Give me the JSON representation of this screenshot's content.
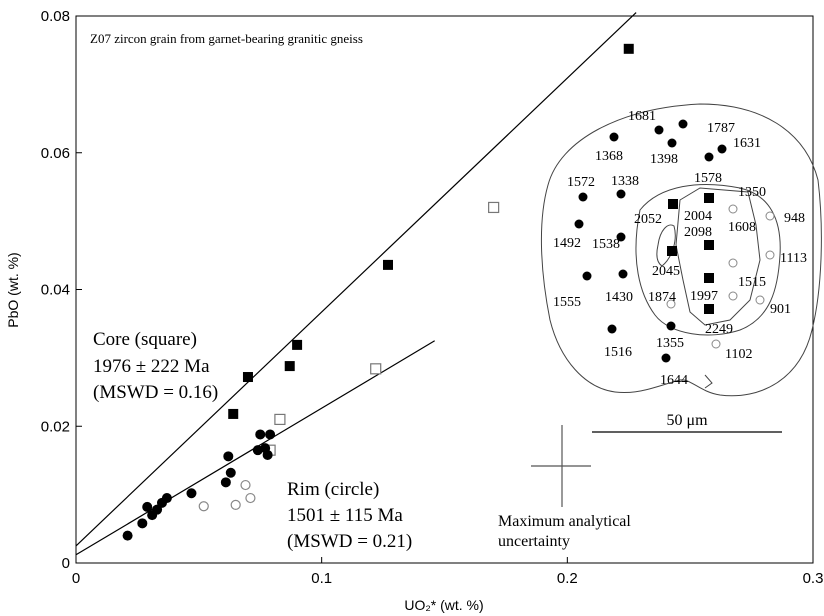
{
  "chart_data": {
    "type": "scatter",
    "title": "Z07 zircon grain from garnet-bearing granitic gneiss",
    "xlabel": "UO₂* (wt. %)",
    "ylabel": "PbO (wt. %)",
    "xlim": [
      0,
      0.3
    ],
    "ylim": [
      0,
      0.08
    ],
    "x_ticks": [
      "0",
      "0.1",
      "0.2",
      "0.3"
    ],
    "y_ticks": [
      "0",
      "0.02",
      "0.04",
      "0.06",
      "0.08"
    ],
    "series": [
      {
        "marker": "filled-square",
        "points": [
          [
            0.064,
            0.0218
          ],
          [
            0.07,
            0.0272
          ],
          [
            0.087,
            0.0288
          ],
          [
            0.09,
            0.0319
          ],
          [
            0.127,
            0.0436
          ],
          [
            0.225,
            0.0752
          ]
        ]
      },
      {
        "marker": "open-square",
        "points": [
          [
            0.079,
            0.0165
          ],
          [
            0.083,
            0.021
          ],
          [
            0.122,
            0.0284
          ],
          [
            0.17,
            0.052
          ]
        ]
      },
      {
        "marker": "filled-circle",
        "points": [
          [
            0.021,
            0.004
          ],
          [
            0.027,
            0.0058
          ],
          [
            0.029,
            0.0082
          ],
          [
            0.031,
            0.007
          ],
          [
            0.033,
            0.0078
          ],
          [
            0.035,
            0.0088
          ],
          [
            0.037,
            0.0095
          ],
          [
            0.047,
            0.0102
          ],
          [
            0.061,
            0.0118
          ],
          [
            0.062,
            0.0156
          ],
          [
            0.063,
            0.0132
          ],
          [
            0.074,
            0.0165
          ],
          [
            0.075,
            0.0188
          ],
          [
            0.077,
            0.0168
          ],
          [
            0.078,
            0.0158
          ],
          [
            0.079,
            0.0188
          ]
        ]
      },
      {
        "marker": "open-circle",
        "points": [
          [
            0.052,
            0.0083
          ],
          [
            0.065,
            0.0085
          ],
          [
            0.069,
            0.0114
          ],
          [
            0.071,
            0.0095
          ]
        ]
      }
    ],
    "fit_lines": [
      {
        "from": [
          0,
          0.0025
        ],
        "to": [
          0.228,
          0.0805
        ]
      },
      {
        "from": [
          0,
          0.0012
        ],
        "to": [
          0.146,
          0.0325
        ]
      }
    ],
    "annotations": {
      "core_line1": "Core (square)",
      "core_line2": "1976 ± 222 Ma",
      "core_line3": "(MSWD = 0.16)",
      "rim_line1": "Rim (circle)",
      "rim_line2": "1501 ± 115 Ma",
      "rim_line3": "(MSWD = 0.21)",
      "uncertainty_line1": "Maximum analytical",
      "uncertainty_line2": "uncertainty",
      "scale_bar": "50 μm"
    },
    "inset_labels": [
      "1681",
      "1787",
      "1368",
      "1398",
      "1631",
      "1572",
      "1338",
      "1578",
      "1350",
      "948",
      "2052",
      "2004",
      "2098",
      "1492",
      "1538",
      "1608",
      "1113",
      "2045",
      "1515",
      "1555",
      "1430",
      "1874",
      "1997",
      "901",
      "2249",
      "1516",
      "1355",
      "1102",
      "1644"
    ],
    "grid": false,
    "legend": "none"
  }
}
